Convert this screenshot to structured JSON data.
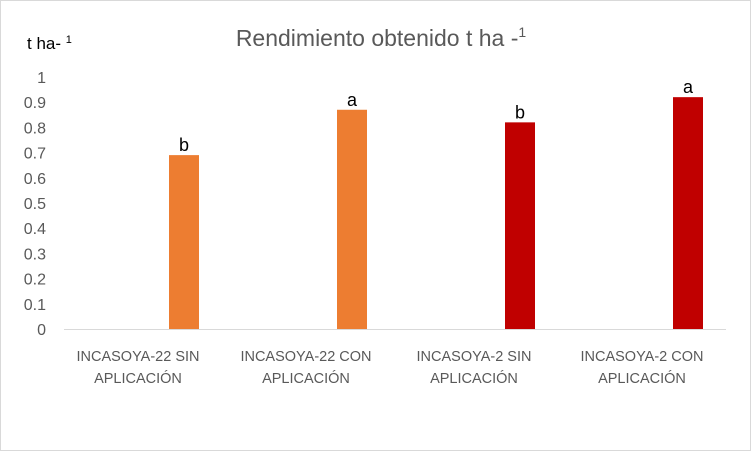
{
  "chart_data": {
    "type": "bar",
    "title": "Rendimiento obtenido t ha -",
    "title_sup": "1",
    "ylabel": "t ha- ",
    "ylabel_sup": "1",
    "xlabel": "",
    "ylim": [
      0,
      1
    ],
    "yticks": [
      "0",
      "0.1",
      "0.2",
      "0.3",
      "0.4",
      "0.5",
      "0.6",
      "0.7",
      "0.8",
      "0.9",
      "1"
    ],
    "categories": [
      [
        "INCASOYA-22 SIN",
        "APLICACIÓN"
      ],
      [
        "INCASOYA-22 CON",
        "APLICACIÓN"
      ],
      [
        "INCASOYA-2 SIN",
        "APLICACIÓN"
      ],
      [
        "INCASOYA-2 CON",
        "APLICACIÓN"
      ]
    ],
    "values": [
      0.69,
      0.87,
      0.82,
      0.92
    ],
    "colors": [
      "#ED7D31",
      "#ED7D31",
      "#C00000",
      "#C00000"
    ],
    "annotations": [
      "b",
      "a",
      "b",
      "a"
    ],
    "grid": false
  }
}
